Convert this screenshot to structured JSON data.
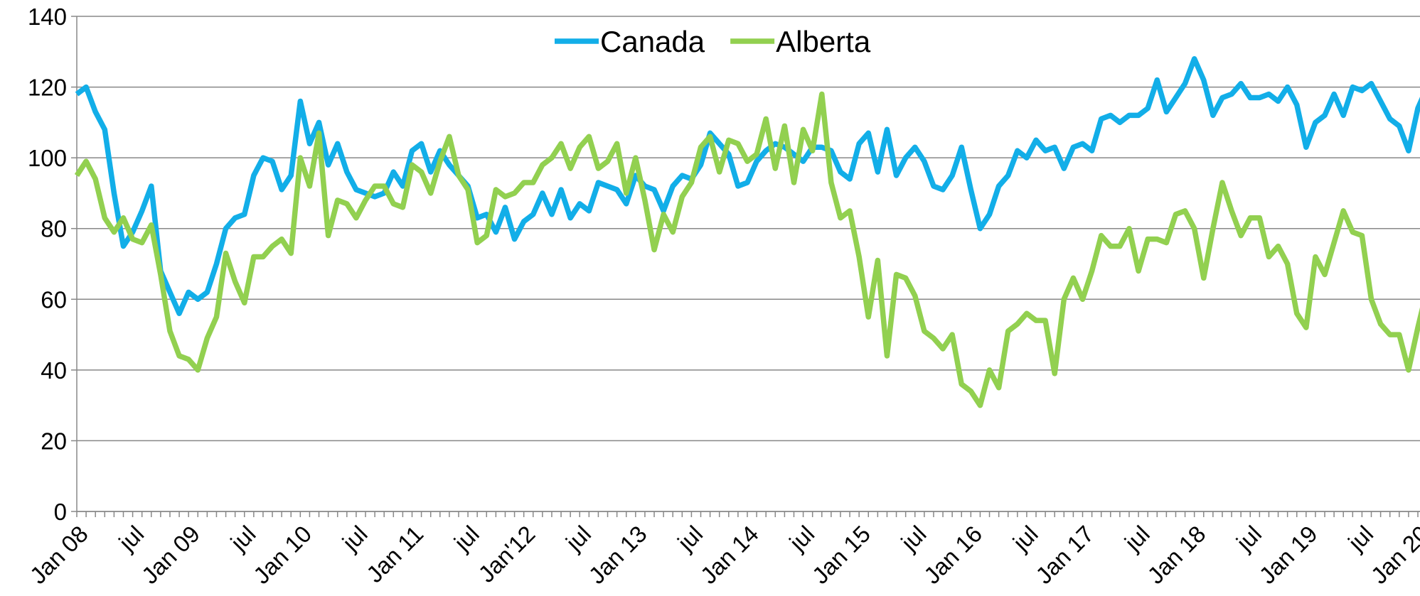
{
  "chart_data": {
    "type": "line",
    "categories": [
      "Jan 08",
      null,
      null,
      null,
      null,
      null,
      "jul",
      null,
      null,
      null,
      null,
      null,
      "Jan 09",
      null,
      null,
      null,
      null,
      null,
      "jul",
      null,
      null,
      null,
      null,
      null,
      "Jan 10",
      null,
      null,
      null,
      null,
      null,
      "jul",
      null,
      null,
      null,
      null,
      null,
      "Jan 11",
      null,
      null,
      null,
      null,
      null,
      "jul",
      null,
      null,
      null,
      null,
      null,
      "Jan'12",
      null,
      null,
      null,
      null,
      null,
      "jul",
      null,
      null,
      null,
      null,
      null,
      "Jan 13",
      null,
      null,
      null,
      null,
      null,
      "jul",
      null,
      null,
      null,
      null,
      null,
      "Jan 14",
      null,
      null,
      null,
      null,
      null,
      "jul",
      null,
      null,
      null,
      null,
      null,
      "Jan 15",
      null,
      null,
      null,
      null,
      null,
      "jul",
      null,
      null,
      null,
      null,
      null,
      "Jan 16",
      null,
      null,
      null,
      null,
      null,
      "jul",
      null,
      null,
      null,
      null,
      null,
      "Jan 17",
      null,
      null,
      null,
      null,
      null,
      "jul",
      null,
      null,
      null,
      null,
      null,
      "Jan 18",
      null,
      null,
      null,
      null,
      null,
      "jul",
      null,
      null,
      null,
      null,
      null,
      "Jan 19",
      null,
      null,
      null,
      null,
      null,
      "jul",
      null,
      null,
      null,
      null,
      null,
      "Jan 20",
      null
    ],
    "series": [
      {
        "name": "Canada",
        "color": "#12aee8",
        "values": [
          118,
          120,
          113,
          108,
          90,
          75,
          79,
          85,
          92,
          68,
          62,
          56,
          62,
          60,
          62,
          70,
          80,
          83,
          84,
          95,
          100,
          99,
          91,
          95,
          116,
          104,
          110,
          98,
          104,
          96,
          91,
          90,
          89,
          90,
          96,
          92,
          102,
          104,
          96,
          102,
          98,
          95,
          92,
          83,
          84,
          79,
          86,
          77,
          82,
          84,
          90,
          84,
          91,
          83,
          87,
          85,
          93,
          92,
          91,
          87,
          95,
          92,
          91,
          85,
          92,
          95,
          94,
          98,
          107,
          104,
          101,
          92,
          93,
          99,
          102,
          104,
          103,
          101,
          99,
          103,
          103,
          102,
          96,
          94,
          104,
          107,
          96,
          108,
          95,
          100,
          103,
          99,
          92,
          91,
          95,
          103,
          91,
          80,
          84,
          92,
          95,
          102,
          100,
          105,
          102,
          103,
          97,
          103,
          104,
          102,
          111,
          112,
          110,
          112,
          112,
          114,
          122,
          113,
          117,
          121,
          128,
          122,
          112,
          117,
          118,
          121,
          117,
          117,
          118,
          116,
          120,
          115,
          103,
          110,
          112,
          118,
          112,
          120,
          119,
          121,
          116,
          111,
          109,
          102,
          114,
          120
        ]
      },
      {
        "name": "Alberta",
        "color": "#92d050",
        "values": [
          95,
          99,
          94,
          83,
          79,
          83,
          77,
          76,
          81,
          67,
          51,
          44,
          43,
          40,
          49,
          55,
          73,
          65,
          59,
          72,
          72,
          75,
          77,
          73,
          100,
          92,
          107,
          78,
          88,
          87,
          83,
          88,
          92,
          92,
          87,
          86,
          98,
          96,
          90,
          99,
          106,
          95,
          91,
          76,
          78,
          91,
          89,
          90,
          93,
          93,
          98,
          100,
          104,
          97,
          103,
          106,
          97,
          99,
          104,
          90,
          100,
          88,
          74,
          84,
          79,
          89,
          93,
          103,
          106,
          96,
          105,
          104,
          99,
          101,
          111,
          97,
          109,
          93,
          108,
          102,
          118,
          93,
          83,
          85,
          72,
          55,
          71,
          44,
          67,
          66,
          61,
          51,
          49,
          46,
          50,
          36,
          34,
          30,
          40,
          35,
          51,
          53,
          56,
          54,
          54,
          39,
          60,
          66,
          60,
          68,
          78,
          75,
          75,
          80,
          68,
          77,
          77,
          76,
          84,
          85,
          80,
          66,
          80,
          93,
          85,
          78,
          83,
          83,
          72,
          75,
          70,
          56,
          52,
          72,
          67,
          76,
          85,
          79,
          78,
          60,
          53,
          50,
          50,
          40,
          52,
          63
        ]
      }
    ],
    "ylim": [
      0,
      140
    ],
    "yticks": [
      0,
      20,
      40,
      60,
      80,
      100,
      120,
      140
    ],
    "grid": true,
    "legend": "top"
  }
}
